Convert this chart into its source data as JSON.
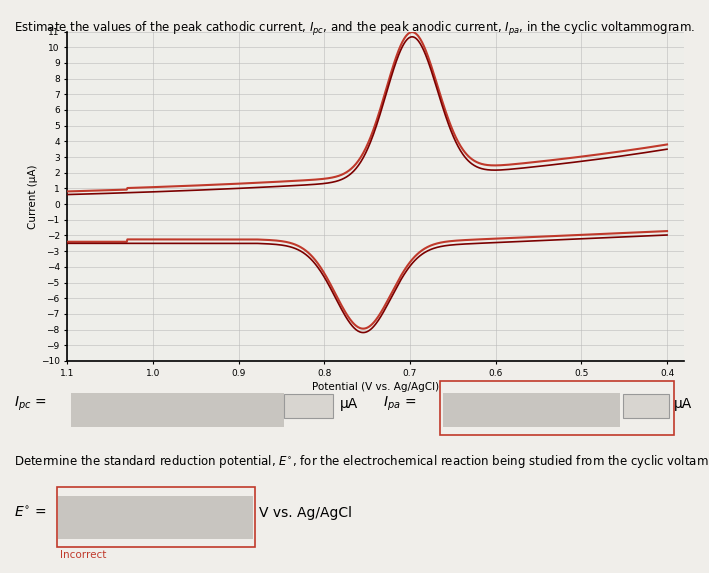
{
  "xlabel": "Potential (V vs. Ag/AgCl)",
  "ylabel": "Current (μA)",
  "xlim": [
    1.1,
    0.38
  ],
  "ylim": [
    -10,
    11
  ],
  "yticks": [
    -10,
    -9,
    -8,
    -7,
    -6,
    -5,
    -4,
    -3,
    -2,
    -1,
    0,
    1,
    2,
    3,
    4,
    5,
    6,
    7,
    8,
    9,
    10,
    11
  ],
  "xticks": [
    1.1,
    1.0,
    0.9,
    0.8,
    0.7,
    0.6,
    0.5,
    0.4
  ],
  "line_color_outer": "#c0392b",
  "line_color_inner": "#7b0000",
  "bg_color": "#eeeeea",
  "page_color": "#f0eeea",
  "grid_color": "#bbbbbb",
  "title_text": "Estimate the values of the peak cathodic current, $I_{pc}$, and the peak anodic current, $I_{pa}$, in the cyclic voltammogram.",
  "ipc_label": "$I_{pc}$ =",
  "ipa_label": "$I_{pa}$ =",
  "mu_label": "μA",
  "e_label": "$E^{\\circ}$ =",
  "v_label": "V vs. Ag/AgCl",
  "determine_text": "Determine the standard reduction potential, $E^{\\circ}$, for the electrochemical reaction being studied from the cyclic voltammogram.",
  "incorrect_label": "Incorrect",
  "box_edge_color": "#c0392b",
  "box_face_color": "#d8d5d0"
}
